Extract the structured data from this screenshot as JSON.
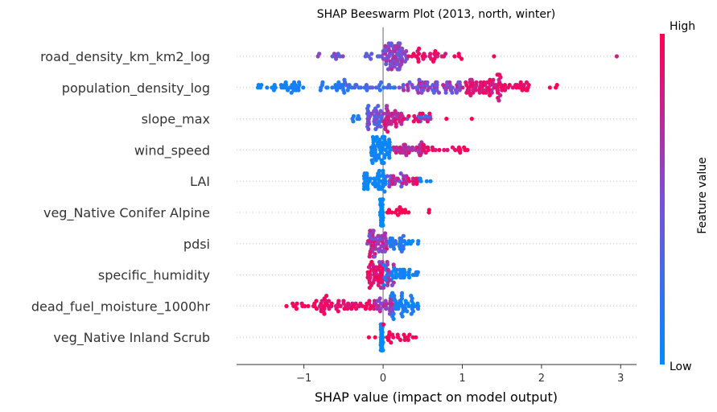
{
  "chart_data": {
    "type": "scatter",
    "subtype": "shap-beeswarm",
    "title": "SHAP Beeswarm Plot (2013, north, winter)",
    "xlabel": "SHAP value (impact on model output)",
    "xlim": [
      -1.85,
      3.2
    ],
    "xticks": [
      -1,
      0,
      1,
      2,
      3
    ],
    "xtick_labels": [
      "−1",
      "0",
      "1",
      "2",
      "3"
    ],
    "colorbar": {
      "label": "Feature value",
      "high": "High",
      "low": "Low",
      "low_color": "#008bfb",
      "high_color": "#ff0052"
    },
    "grid": false,
    "features": [
      {
        "name": "road_density_km_km2_log",
        "clusters": [
          [
            -0.9,
            -0.45,
            -0.5,
            0.25,
            10
          ],
          [
            -0.25,
            0.0,
            -0.4,
            0.0,
            8
          ],
          [
            0.0,
            0.3,
            -0.3,
            0.45,
            70
          ],
          [
            0.3,
            0.8,
            0.6,
            1.0,
            28
          ],
          [
            0.9,
            1.0,
            0.9,
            1.0,
            4
          ]
        ],
        "outliers": [
          [
            1.4,
            1.0
          ],
          [
            2.95,
            0.6
          ]
        ]
      },
      {
        "name": "population_density_log",
        "clusters": [
          [
            -1.65,
            -1.3,
            -1.0,
            -0.85,
            10
          ],
          [
            -1.3,
            -1.0,
            -0.9,
            -0.75,
            22
          ],
          [
            -0.8,
            -0.5,
            -0.8,
            -0.6,
            18
          ],
          [
            -0.5,
            0.2,
            -0.7,
            -0.2,
            30
          ],
          [
            0.2,
            1.0,
            -0.3,
            0.55,
            65
          ],
          [
            1.0,
            1.5,
            0.45,
            1.0,
            70
          ],
          [
            1.5,
            1.85,
            0.75,
            1.0,
            22
          ],
          [
            2.1,
            2.3,
            1.0,
            1.0,
            3
          ]
        ],
        "outliers": []
      },
      {
        "name": "slope_max",
        "clusters": [
          [
            -0.45,
            -0.2,
            -0.85,
            -0.6,
            6
          ],
          [
            -0.2,
            0.0,
            -0.5,
            0.3,
            40
          ],
          [
            0.0,
            0.25,
            0.25,
            0.85,
            40
          ],
          [
            0.3,
            0.6,
            -0.6,
            0.5,
            12
          ],
          [
            0.25,
            0.6,
            0.7,
            1.0,
            10
          ]
        ],
        "outliers": [
          [
            0.8,
            1.0
          ],
          [
            1.12,
            1.0
          ]
        ]
      },
      {
        "name": "wind_speed",
        "clusters": [
          [
            -0.15,
            0.1,
            -1.0,
            -0.8,
            65
          ],
          [
            0.1,
            0.5,
            0.2,
            0.8,
            35
          ],
          [
            0.5,
            1.0,
            0.7,
            1.0,
            18
          ],
          [
            1.0,
            1.12,
            0.9,
            1.0,
            3
          ]
        ],
        "outliers": []
      },
      {
        "name": "LAI",
        "clusters": [
          [
            -0.25,
            0.05,
            -1.0,
            -0.8,
            45
          ],
          [
            0.05,
            0.3,
            -0.3,
            0.7,
            25
          ],
          [
            0.3,
            0.5,
            0.6,
            1.0,
            10
          ],
          [
            0.45,
            0.6,
            -1.0,
            -0.85,
            4
          ]
        ],
        "outliers": []
      },
      {
        "name": "veg_Native Conifer Alpine",
        "clusters": [
          [
            -0.04,
            0.0,
            -1.0,
            -0.95,
            40
          ],
          [
            0.05,
            0.28,
            0.95,
            1.0,
            14
          ],
          [
            0.55,
            0.6,
            0.95,
            1.0,
            2
          ]
        ],
        "outliers": [
          [
            0.32,
            1.0
          ]
        ]
      },
      {
        "name": "pdsi",
        "clusters": [
          [
            -0.2,
            0.05,
            -0.1,
            0.9,
            55
          ],
          [
            0.05,
            0.3,
            -0.9,
            -0.5,
            25
          ],
          [
            0.3,
            0.45,
            -1.0,
            -0.85,
            6
          ]
        ],
        "outliers": []
      },
      {
        "name": "specific_humidity",
        "clusters": [
          [
            -0.2,
            0.0,
            0.6,
            1.0,
            45
          ],
          [
            0.0,
            0.45,
            -1.0,
            -0.7,
            40
          ],
          [
            -0.05,
            0.15,
            0.0,
            0.5,
            15
          ]
        ],
        "outliers": []
      },
      {
        "name": "dead_fuel_moisture_1000hr",
        "clusters": [
          [
            -1.2,
            -0.8,
            0.85,
            1.0,
            14
          ],
          [
            -0.8,
            -0.1,
            0.6,
            1.0,
            55
          ],
          [
            -0.1,
            0.15,
            0.0,
            0.7,
            28
          ],
          [
            0.1,
            0.45,
            -1.0,
            -0.7,
            45
          ]
        ],
        "outliers": [
          [
            -1.22,
            1.0
          ]
        ]
      },
      {
        "name": "veg_Native Inland Scrub",
        "clusters": [
          [
            -0.03,
            0.0,
            -1.0,
            -0.95,
            45
          ],
          [
            0.0,
            0.35,
            0.9,
            1.0,
            18
          ],
          [
            0.35,
            0.42,
            0.95,
            1.0,
            2
          ]
        ],
        "outliers": [
          [
            -0.18,
            1.0
          ],
          [
            -0.1,
            1.0
          ]
        ]
      }
    ]
  }
}
